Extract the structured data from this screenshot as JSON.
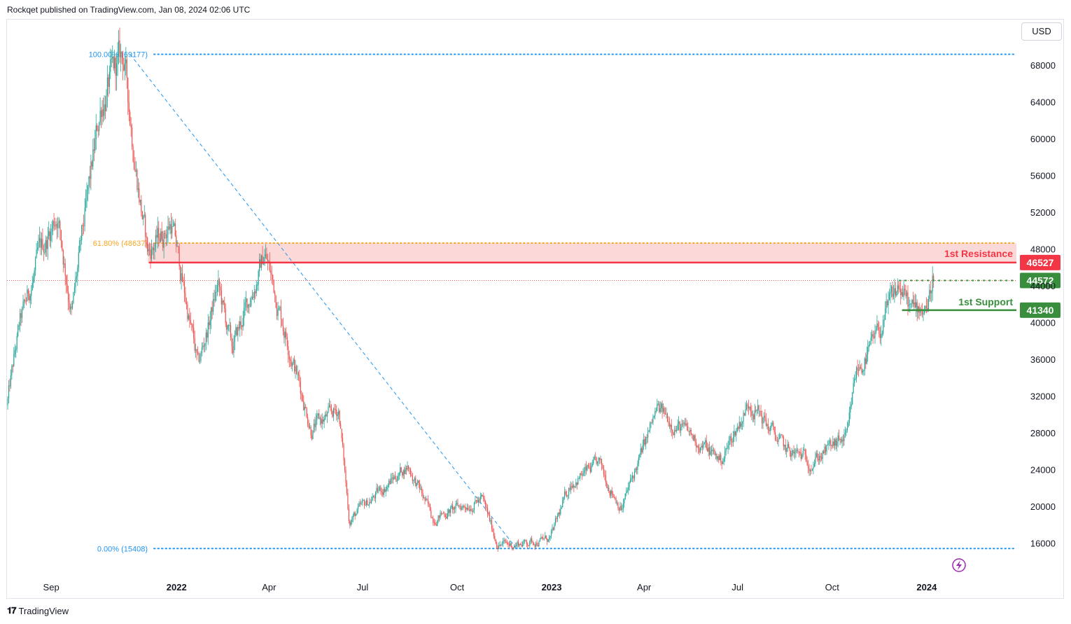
{
  "header": {
    "publisher_line": "Rockqet published on TradingView.com, Jan 08, 2024 02:06 UTC"
  },
  "currency_button": "USD",
  "footer": {
    "brand": "TradingView"
  },
  "colors": {
    "bull": "#26a69a",
    "bear": "#ef5350",
    "resistance": "#f23645",
    "support": "#388e3c",
    "fib_high": "#2962ff",
    "fib_mid": "#f5a623"
  },
  "chart_data": {
    "type": "candlestick",
    "symbol_currency": "USD",
    "y_range": [
      12500,
      71000
    ],
    "y_ticks": [
      16000,
      20000,
      24000,
      28000,
      32000,
      36000,
      40000,
      44000,
      48000,
      52000,
      56000,
      60000,
      64000,
      68000
    ],
    "x_ticks": [
      {
        "label": "Sep",
        "date": "2021-09-01",
        "bold": false
      },
      {
        "label": "2022",
        "date": "2022-01-01",
        "bold": true
      },
      {
        "label": "Apr",
        "date": "2022-04-01",
        "bold": false
      },
      {
        "label": "Jul",
        "date": "2022-07-01",
        "bold": false
      },
      {
        "label": "Oct",
        "date": "2022-10-01",
        "bold": false
      },
      {
        "label": "2023",
        "date": "2023-01-01",
        "bold": true
      },
      {
        "label": "Apr",
        "date": "2023-04-01",
        "bold": false
      },
      {
        "label": "Jul",
        "date": "2023-07-01",
        "bold": false
      },
      {
        "label": "Oct",
        "date": "2023-10-01",
        "bold": false
      },
      {
        "label": "2024",
        "date": "2024-01-01",
        "bold": true
      }
    ],
    "price_path": [
      [
        "2021-07-20",
        31000
      ],
      [
        "2021-08-01",
        39500
      ],
      [
        "2021-08-20",
        47000
      ],
      [
        "2021-09-07",
        52000
      ],
      [
        "2021-09-21",
        41000
      ],
      [
        "2021-10-20",
        64000
      ],
      [
        "2021-11-10",
        69000
      ],
      [
        "2021-11-26",
        54000
      ],
      [
        "2021-12-04",
        47500
      ],
      [
        "2021-12-27",
        51000
      ],
      [
        "2022-01-22",
        35000
      ],
      [
        "2022-02-10",
        44000
      ],
      [
        "2022-02-24",
        37000
      ],
      [
        "2022-03-28",
        47500
      ],
      [
        "2022-05-12",
        28500
      ],
      [
        "2022-06-08",
        30500
      ],
      [
        "2022-06-18",
        18500
      ],
      [
        "2022-08-14",
        24500
      ],
      [
        "2022-09-07",
        18800
      ],
      [
        "2022-10-25",
        20800
      ],
      [
        "2022-11-09",
        16000
      ],
      [
        "2022-11-21",
        15800
      ],
      [
        "2022-12-31",
        16500
      ],
      [
        "2023-01-20",
        22700
      ],
      [
        "2023-02-16",
        24500
      ],
      [
        "2023-03-10",
        19800
      ],
      [
        "2023-04-14",
        30500
      ],
      [
        "2023-06-15",
        25000
      ],
      [
        "2023-07-13",
        31500
      ],
      [
        "2023-08-17",
        26000
      ],
      [
        "2023-09-11",
        25000
      ],
      [
        "2023-10-16",
        27500
      ],
      [
        "2023-10-24",
        34500
      ],
      [
        "2023-11-10",
        37500
      ],
      [
        "2023-12-05",
        44000
      ],
      [
        "2023-12-18",
        41000
      ],
      [
        "2024-01-03",
        42500
      ],
      [
        "2024-01-08",
        45600
      ]
    ],
    "current_price": 44572,
    "fibonacci": {
      "start": {
        "date": "2021-11-10",
        "price": 69177
      },
      "end": {
        "date": "2022-11-21",
        "price": 15408
      },
      "levels": [
        {
          "label": "100.00% (69177)",
          "price": 69177
        },
        {
          "label": "61.80% (48637)",
          "price": 48637
        },
        {
          "label": "0.00% (15408)",
          "price": 15408
        }
      ]
    },
    "resistance_zone": {
      "top": 48637,
      "bottom": 46527,
      "from_date": "2021-12-04"
    },
    "levels": [
      {
        "label": "1st Resistance",
        "price": 46527,
        "price_label": "46527",
        "from_date": "2021-12-05"
      },
      {
        "label": "",
        "price": 44572,
        "price_label": "44572",
        "from_date": "2023-12-05",
        "dotted": true
      },
      {
        "label": "1st Support",
        "price": 41340,
        "price_label": "41340",
        "from_date": "2023-12-08"
      }
    ]
  }
}
